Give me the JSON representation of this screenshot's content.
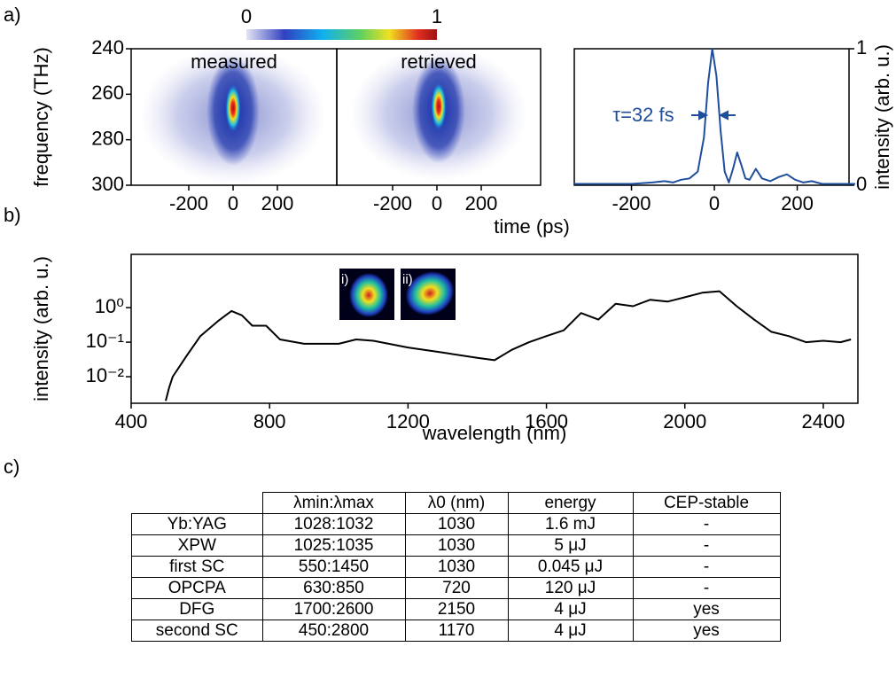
{
  "panels": [
    "a)",
    "b)",
    "c)"
  ],
  "chart_data": [
    {
      "type": "heatmap",
      "title": "measured",
      "xlim": [
        -460,
        468
      ],
      "xticks": [
        -200,
        0,
        200
      ],
      "ylim": [
        240,
        300
      ],
      "y_inverted": true,
      "yticks": [
        240,
        260,
        280,
        300
      ],
      "ylabel": "frequency (THz)",
      "colorbar": {
        "lim": [
          0,
          1
        ],
        "ticks": [
          0,
          1
        ]
      }
    },
    {
      "type": "heatmap",
      "title": "retrieved",
      "xlim": [
        -452,
        468
      ],
      "xticks": [
        -200,
        0,
        200
      ],
      "xlabel": "time (ps)"
    },
    {
      "type": "line",
      "color": "#1f4e9c",
      "xlim": [
        -338,
        325
      ],
      "xticks": [
        -200,
        0,
        200
      ],
      "ylim": [
        0,
        1
      ],
      "yticks": [
        0,
        1
      ],
      "y_axis_side": "right",
      "ylabel": "intensity (arb. u.)",
      "annotation": "τ=32 fs",
      "x": [
        -340,
        -300,
        -250,
        -200,
        -150,
        -120,
        -100,
        -80,
        -60,
        -40,
        -25,
        -15,
        -5,
        5,
        15,
        25,
        35,
        45,
        55,
        65,
        75,
        85,
        100,
        115,
        135,
        155,
        175,
        195,
        215,
        235,
        260,
        290,
        320,
        340
      ],
      "values": [
        0.01,
        0.01,
        0.01,
        0.01,
        0.02,
        0.03,
        0.02,
        0.04,
        0.05,
        0.1,
        0.35,
        0.75,
        1.0,
        0.8,
        0.4,
        0.1,
        0.02,
        0.12,
        0.24,
        0.15,
        0.05,
        0.04,
        0.12,
        0.05,
        0.03,
        0.06,
        0.08,
        0.04,
        0.02,
        0.03,
        0.01,
        0.01,
        0.01,
        0.01
      ]
    },
    {
      "type": "line",
      "color": "#000000",
      "log_y": true,
      "xlim": [
        400,
        2500
      ],
      "xticks": [
        400,
        800,
        1200,
        1600,
        2000,
        2400
      ],
      "ylim": [
        0.0017,
        35
      ],
      "yticks": [
        {
          "value": 0.01,
          "label": "10⁻²"
        },
        {
          "value": 0.1,
          "label": "10⁻¹"
        },
        {
          "value": 1,
          "label": "10⁰"
        }
      ],
      "xlabel": "wavelength (nm)",
      "ylabel": "intensity (arb. u.)",
      "insets": [
        "i)",
        "ii)"
      ],
      "x": [
        500,
        510,
        520,
        540,
        560,
        600,
        650,
        690,
        720,
        750,
        790,
        830,
        900,
        1000,
        1050,
        1100,
        1200,
        1300,
        1400,
        1450,
        1500,
        1550,
        1600,
        1650,
        1700,
        1750,
        1800,
        1850,
        1900,
        1950,
        2000,
        2050,
        2100,
        2150,
        2200,
        2250,
        2300,
        2350,
        2400,
        2450,
        2480
      ],
      "values": [
        0.002,
        0.005,
        0.01,
        0.02,
        0.04,
        0.15,
        0.4,
        0.8,
        0.6,
        0.3,
        0.3,
        0.12,
        0.09,
        0.09,
        0.12,
        0.11,
        0.07,
        0.05,
        0.035,
        0.03,
        0.06,
        0.1,
        0.15,
        0.22,
        0.7,
        0.45,
        1.3,
        1.1,
        1.7,
        1.5,
        2.0,
        2.7,
        3.0,
        1.1,
        0.45,
        0.2,
        0.15,
        0.1,
        0.11,
        0.1,
        0.12
      ]
    }
  ],
  "table": {
    "header": [
      "λmin:λmax",
      "λ0 (nm)",
      "energy",
      "CEP-stable"
    ],
    "rows": [
      [
        "Yb:YAG",
        "1028:1032",
        "1030",
        "1.6 mJ",
        "-"
      ],
      [
        "XPW",
        "1025:1035",
        "1030",
        "5 μJ",
        "-"
      ],
      [
        "first SC",
        "550:1450",
        "1030",
        "0.045 μJ",
        "-"
      ],
      [
        "OPCPA",
        "630:850",
        "720",
        "120 μJ",
        "-"
      ],
      [
        "DFG",
        "1700:2600",
        "2150",
        "4 μJ",
        "yes"
      ],
      [
        "second SC",
        "450:2800",
        "1170",
        "4 μJ",
        "yes"
      ]
    ]
  }
}
